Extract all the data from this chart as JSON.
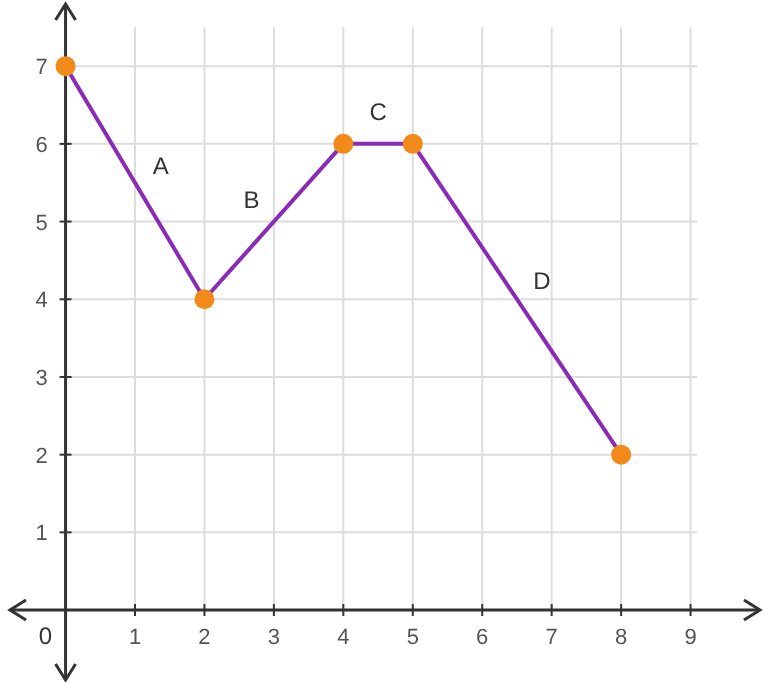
{
  "chart_data": {
    "type": "line",
    "x": [
      0,
      2,
      4,
      5,
      8
    ],
    "series": [
      {
        "color": "#8a2bb8",
        "values": [
          7,
          4,
          6,
          6,
          2
        ]
      },
      {
        "type": "scatter",
        "color": "#f28a1a",
        "marker": "circle",
        "values": [
          7,
          4,
          6,
          6,
          2
        ]
      }
    ],
    "line_style": "solid",
    "xlim": [
      -0.8,
      10
    ],
    "ylim": [
      -0.9,
      7.8
    ],
    "xticks": [
      1,
      2,
      3,
      4,
      5,
      6,
      7,
      8,
      9
    ],
    "yticks": [
      1,
      2,
      3,
      4,
      5,
      6,
      7
    ],
    "grid": true,
    "annotations": [
      "0",
      "A",
      "B",
      "C",
      "D"
    ]
  }
}
